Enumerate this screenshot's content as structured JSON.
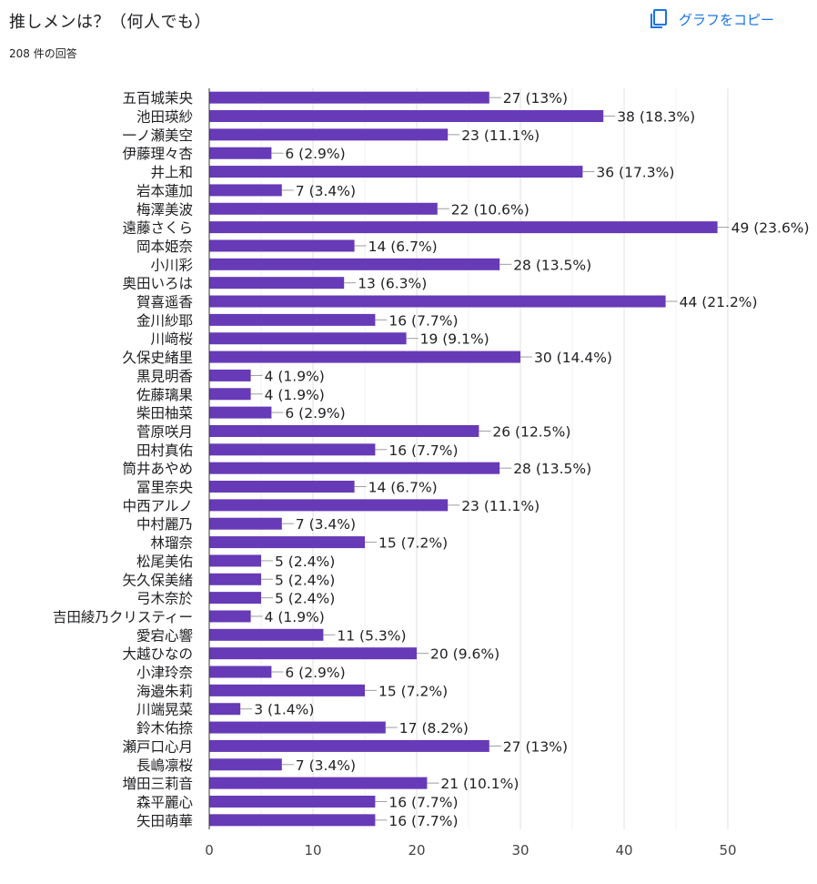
{
  "header": {
    "title": "推しメンは？（何人でも）",
    "response_count": "208 件の回答",
    "copy_label": "グラフをコピー",
    "copy_icon": "copy-icon"
  },
  "colors": {
    "bar": "#673ab7",
    "accent": "#1a73e8",
    "grid": "#e8e8e8"
  },
  "chart_data": {
    "type": "bar",
    "orientation": "horizontal",
    "title": "",
    "xlabel": "",
    "ylabel": "",
    "xlim": [
      0,
      50
    ],
    "xticks": [
      0,
      10,
      20,
      30,
      40,
      50
    ],
    "grid": true,
    "categories": [
      "五百城茉央",
      "池田瑛紗",
      "一ノ瀬美空",
      "伊藤理々杏",
      "井上和",
      "岩本蓮加",
      "梅澤美波",
      "遠藤さくら",
      "岡本姫奈",
      "小川彩",
      "奥田いろは",
      "賀喜遥香",
      "金川紗耶",
      "川﨑桜",
      "久保史緒里",
      "黒見明香",
      "佐藤璃果",
      "柴田柚菜",
      "菅原咲月",
      "田村真佑",
      "筒井あやめ",
      "冨里奈央",
      "中西アルノ",
      "中村麗乃",
      "林瑠奈",
      "松尾美佑",
      "矢久保美緒",
      "弓木奈於",
      "吉田綾乃クリスティー",
      "愛宕心響",
      "大越ひなの",
      "小津玲奈",
      "海邉朱莉",
      "川端晃菜",
      "鈴木佑捺",
      "瀬戸口心月",
      "長嶋凛桜",
      "増田三莉音",
      "森平麗心",
      "矢田萌華"
    ],
    "values": [
      27,
      38,
      23,
      6,
      36,
      7,
      22,
      49,
      14,
      28,
      13,
      44,
      16,
      19,
      30,
      4,
      4,
      6,
      26,
      16,
      28,
      14,
      23,
      7,
      15,
      5,
      5,
      5,
      4,
      11,
      20,
      6,
      15,
      3,
      17,
      27,
      7,
      21,
      16,
      16
    ],
    "data_labels": [
      "27 (13%)",
      "38 (18.3%)",
      "23 (11.1%)",
      "6 (2.9%)",
      "36 (17.3%)",
      "7 (3.4%)",
      "22 (10.6%)",
      "49 (23.6%)",
      "14 (6.7%)",
      "28 (13.5%)",
      "13 (6.3%)",
      "44 (21.2%)",
      "16 (7.7%)",
      "19 (9.1%)",
      "30 (14.4%)",
      "4 (1.9%)",
      "4 (1.9%)",
      "6 (2.9%)",
      "26 (12.5%)",
      "16 (7.7%)",
      "28 (13.5%)",
      "14 (6.7%)",
      "23 (11.1%)",
      "7 (3.4%)",
      "15 (7.2%)",
      "5 (2.4%)",
      "5 (2.4%)",
      "5 (2.4%)",
      "4 (1.9%)",
      "11 (5.3%)",
      "20 (9.6%)",
      "6 (2.9%)",
      "15 (7.2%)",
      "3 (1.4%)",
      "17 (8.2%)",
      "27 (13%)",
      "7 (3.4%)",
      "21 (10.1%)",
      "16 (7.7%)",
      "16 (7.7%)"
    ]
  }
}
